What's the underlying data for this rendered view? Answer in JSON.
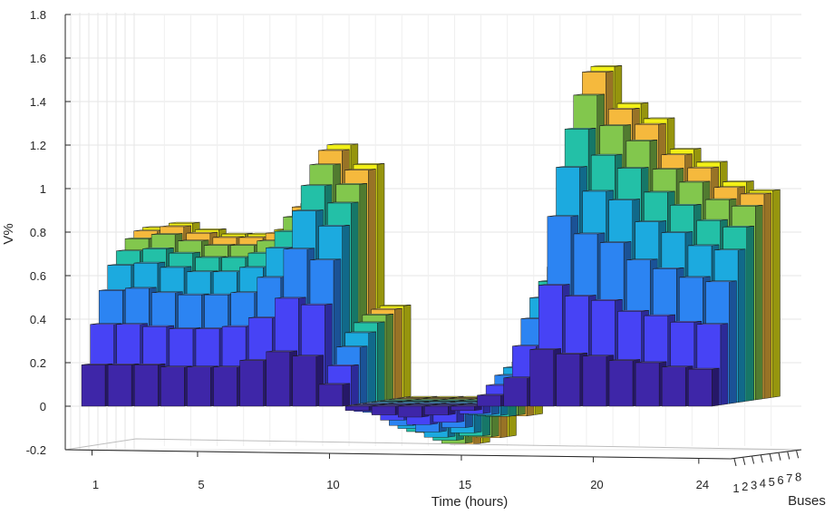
{
  "chart_data": {
    "type": "bar3d",
    "title": "",
    "xlabel": "Time (hours)",
    "ylabel": "V%",
    "zlabel": "Buses",
    "ylim": [
      -0.2,
      1.8
    ],
    "yticks": [
      "-0.2",
      "0",
      "0.2",
      "0.4",
      "0.6",
      "0.8",
      "1",
      "1.2",
      "1.4",
      "1.6",
      "1.8"
    ],
    "xticks": [
      "1",
      "5",
      "10",
      "15",
      "20",
      "24"
    ],
    "xtick_hours": [
      1,
      5,
      10,
      15,
      20,
      24
    ],
    "bus_ticks": [
      "1",
      "2",
      "3",
      "4",
      "5",
      "6",
      "7",
      "8"
    ],
    "hours": [
      1,
      2,
      3,
      4,
      5,
      6,
      7,
      8,
      9,
      10,
      11,
      12,
      13,
      14,
      15,
      16,
      17,
      18,
      19,
      20,
      21,
      22,
      23,
      24
    ],
    "series_colors": [
      "#3e26a8",
      "#4743f5",
      "#2c84f2",
      "#1caadf",
      "#23c0a7",
      "#82c74d",
      "#f5b93d",
      "#f2f016"
    ],
    "series": [
      {
        "name": "Bus 1",
        "values": [
          0.19,
          0.19,
          0.19,
          0.18,
          0.18,
          0.18,
          0.21,
          0.25,
          0.23,
          0.1,
          -0.02,
          -0.04,
          -0.05,
          -0.04,
          -0.02,
          0.05,
          0.13,
          0.26,
          0.24,
          0.23,
          0.21,
          0.2,
          0.18,
          0.17
        ]
      },
      {
        "name": "Bus 2",
        "values": [
          0.37,
          0.37,
          0.36,
          0.35,
          0.35,
          0.36,
          0.4,
          0.49,
          0.46,
          0.18,
          -0.03,
          -0.07,
          -0.09,
          -0.08,
          -0.04,
          0.09,
          0.27,
          0.55,
          0.5,
          0.48,
          0.43,
          0.41,
          0.38,
          0.37
        ]
      },
      {
        "name": "Bus 3",
        "values": [
          0.52,
          0.53,
          0.51,
          0.5,
          0.5,
          0.51,
          0.58,
          0.71,
          0.66,
          0.26,
          -0.04,
          -0.1,
          -0.13,
          -0.11,
          -0.05,
          0.13,
          0.39,
          0.86,
          0.78,
          0.74,
          0.66,
          0.62,
          0.58,
          0.56
        ]
      },
      {
        "name": "Bus 4",
        "values": [
          0.63,
          0.64,
          0.62,
          0.6,
          0.6,
          0.62,
          0.71,
          0.88,
          0.81,
          0.32,
          -0.05,
          -0.12,
          -0.16,
          -0.14,
          -0.06,
          0.16,
          0.48,
          1.08,
          0.97,
          0.93,
          0.83,
          0.78,
          0.72,
          0.7
        ]
      },
      {
        "name": "Bus 5",
        "values": [
          0.69,
          0.7,
          0.68,
          0.66,
          0.66,
          0.68,
          0.78,
          0.99,
          0.91,
          0.36,
          -0.06,
          -0.14,
          -0.18,
          -0.16,
          -0.07,
          0.18,
          0.55,
          1.25,
          1.13,
          1.07,
          0.96,
          0.9,
          0.83,
          0.8
        ]
      },
      {
        "name": "Bus 6",
        "values": [
          0.74,
          0.76,
          0.73,
          0.71,
          0.71,
          0.73,
          0.84,
          1.08,
          0.99,
          0.39,
          -0.06,
          -0.15,
          -0.2,
          -0.17,
          -0.07,
          0.2,
          0.61,
          1.4,
          1.26,
          1.19,
          1.06,
          1.0,
          0.92,
          0.89
        ]
      },
      {
        "name": "Bus 7",
        "values": [
          0.77,
          0.79,
          0.76,
          0.74,
          0.74,
          0.76,
          0.88,
          1.14,
          1.05,
          0.41,
          -0.07,
          -0.16,
          -0.21,
          -0.18,
          -0.08,
          0.21,
          0.64,
          1.5,
          1.33,
          1.26,
          1.12,
          1.06,
          0.97,
          0.94
        ]
      },
      {
        "name": "Bus 8",
        "values": [
          0.78,
          0.8,
          0.77,
          0.75,
          0.75,
          0.77,
          0.89,
          1.16,
          1.07,
          0.42,
          -0.07,
          -0.16,
          -0.21,
          -0.18,
          -0.08,
          0.21,
          0.65,
          1.52,
          1.35,
          1.28,
          1.14,
          1.08,
          0.99,
          0.95
        ]
      }
    ]
  }
}
